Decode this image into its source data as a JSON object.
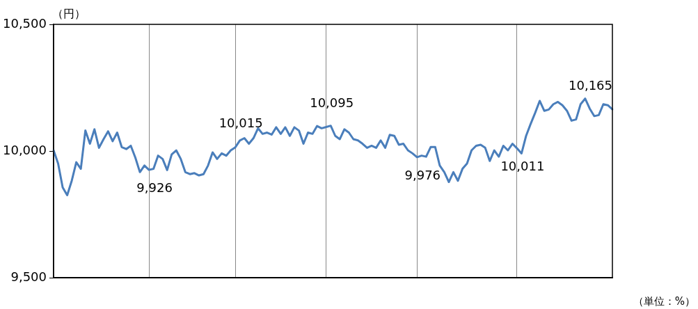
{
  "chart_data": {
    "type": "line",
    "ylabel": "（円）",
    "annotations": [
      "（単位：%）"
    ],
    "categories": [
      null,
      null,
      null,
      null,
      null,
      null,
      null,
      null,
      null,
      null,
      null,
      null,
      null,
      null,
      null,
      null,
      null,
      null,
      null,
      null,
      null,
      null,
      null,
      null,
      null,
      null,
      null,
      null,
      null,
      null,
      null,
      null,
      null,
      null,
      null,
      null,
      null,
      null,
      null,
      null,
      null,
      null,
      null,
      null,
      null,
      null,
      null,
      null,
      null,
      null,
      null,
      null,
      null,
      null,
      null,
      null,
      null,
      null,
      null,
      null,
      null,
      null,
      null,
      null,
      null,
      null,
      null,
      null,
      null,
      null,
      null,
      null,
      null,
      null,
      null,
      null,
      null,
      null,
      null,
      null,
      null,
      null,
      null,
      null,
      null,
      null,
      null,
      null,
      null,
      null,
      null,
      null,
      null,
      null,
      null,
      null,
      null,
      null,
      null,
      null,
      null,
      null,
      null,
      null,
      null,
      null,
      null,
      null,
      null,
      null,
      null,
      null,
      null,
      null,
      null,
      null,
      null,
      null,
      null,
      null,
      null,
      null,
      null,
      null
    ],
    "series": [
      {
        "color": "#4a7ebb",
        "values": [
          10003,
          9951,
          9857,
          9826,
          9883,
          9956,
          9930,
          10081,
          10029,
          10086,
          10013,
          10047,
          10078,
          10039,
          10073,
          10016,
          10008,
          10021,
          9974,
          9917,
          9943,
          9926,
          9930,
          9982,
          9969,
          9925,
          9987,
          10003,
          9969,
          9917,
          9909,
          9913,
          9904,
          9909,
          9943,
          9995,
          9969,
          9991,
          9982,
          10003,
          10015,
          10042,
          10051,
          10029,
          10051,
          10090,
          10068,
          10073,
          10065,
          10094,
          10068,
          10094,
          10060,
          10094,
          10081,
          10029,
          10073,
          10068,
          10099,
          10090,
          10095,
          10100,
          10060,
          10047,
          10086,
          10073,
          10047,
          10042,
          10029,
          10013,
          10021,
          10013,
          10042,
          10013,
          10064,
          10060,
          10025,
          10029,
          10003,
          9991,
          9976,
          9982,
          9978,
          10016,
          10016,
          9943,
          9917,
          9878,
          9917,
          9883,
          9930,
          9951,
          10003,
          10021,
          10025,
          10013,
          9961,
          10003,
          9978,
          10021,
          10003,
          10029,
          10011,
          9991,
          10060,
          10107,
          10151,
          10198,
          10159,
          10164,
          10185,
          10194,
          10181,
          10159,
          10120,
          10125,
          10185,
          10207,
          10168,
          10138,
          10142,
          10185,
          10181,
          10165
        ],
        "value_labels": [
          null,
          null,
          null,
          null,
          null,
          null,
          null,
          null,
          null,
          null,
          null,
          null,
          null,
          null,
          null,
          null,
          null,
          null,
          null,
          null,
          null,
          "9,926",
          null,
          null,
          null,
          null,
          null,
          null,
          null,
          null,
          null,
          null,
          null,
          null,
          null,
          null,
          null,
          null,
          null,
          null,
          "10,015",
          null,
          null,
          null,
          null,
          null,
          null,
          null,
          null,
          null,
          null,
          null,
          null,
          null,
          null,
          null,
          null,
          null,
          null,
          null,
          "10,095",
          null,
          null,
          null,
          null,
          null,
          null,
          null,
          null,
          null,
          null,
          null,
          null,
          null,
          null,
          null,
          null,
          null,
          null,
          null,
          "9,976",
          null,
          null,
          null,
          null,
          null,
          null,
          null,
          null,
          null,
          null,
          null,
          null,
          null,
          null,
          null,
          null,
          null,
          null,
          null,
          null,
          null,
          "10,011",
          null,
          null,
          null,
          null,
          null,
          null,
          null,
          null,
          null,
          null,
          null,
          null,
          null,
          null,
          null,
          null,
          null,
          null,
          null,
          null,
          "10,165"
        ]
      }
    ],
    "ylim": [
      9500,
      10500
    ],
    "yticks": [
      {
        "value": 9500,
        "label": "9,500"
      },
      {
        "value": 10000,
        "label": "10,000"
      },
      {
        "value": 10500,
        "label": "10,500"
      }
    ],
    "grid": "x",
    "marker": "none",
    "line_style": "solid",
    "legend": false
  }
}
